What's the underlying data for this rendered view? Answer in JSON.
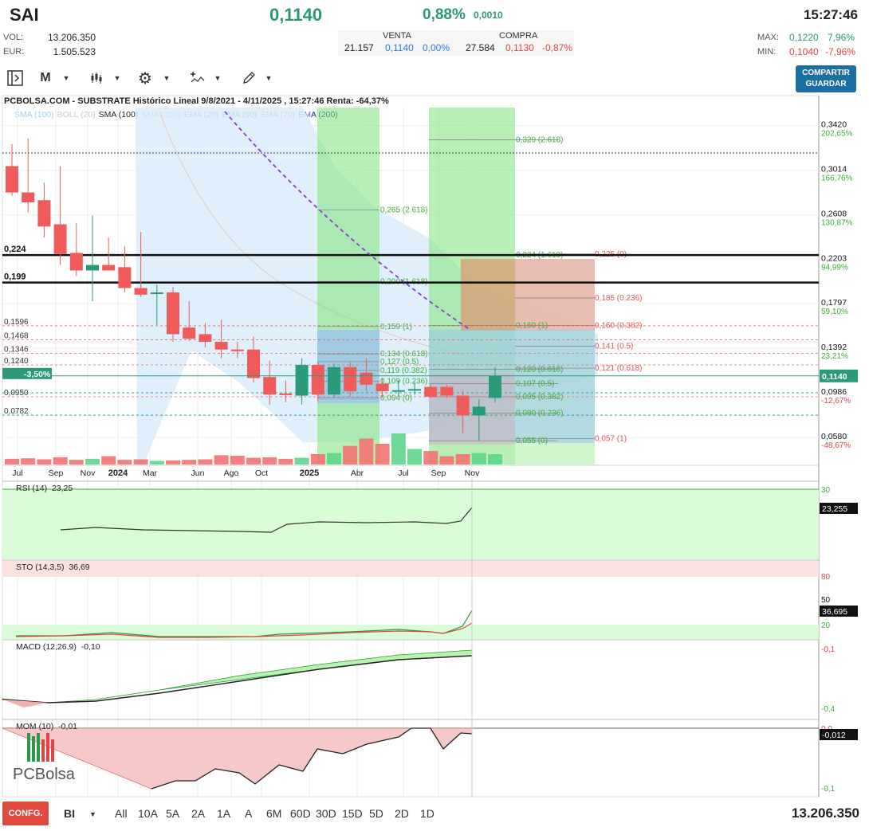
{
  "header": {
    "ticker": "SAI",
    "price": "0,1140",
    "change_pct": "0,88%",
    "change_abs": "0,0010",
    "time": "15:27:46",
    "vol_label": "VOL:",
    "vol_value": "13.206.350",
    "eur_label": "EUR:",
    "eur_value": "1.505.523",
    "venta_label": "VENTA",
    "compra_label": "COMPRA",
    "venta_qty": "21.157",
    "venta_price": "0,1140",
    "venta_pct": "0,00%",
    "compra_qty": "27.584",
    "compra_price": "0,1130",
    "compra_pct": "-0,87%",
    "max_label": "MAX:",
    "max_value": "0,1220",
    "max_pct": "7,96%",
    "min_label": "MIN:",
    "min_value": "0,1040",
    "min_pct": "-7,96%"
  },
  "toolbar": {
    "period": "M",
    "share_label": "COMPARTIR",
    "save_label": "GUARDAR"
  },
  "chart_title": "PCBOLSA.COM - SUBSTRATE Histórico Lineal 9/8/2021 - 4/11/2025 , 15:27:46 Renta: -64,37%",
  "legend": [
    {
      "text": "SMA (100)",
      "color": "#9fcfee"
    },
    {
      "text": "BOLL (20)",
      "color": "#cccccc"
    },
    {
      "text": "SMA (100)",
      "color": "#222222"
    },
    {
      "text": "SMA (200)",
      "color": "#999999"
    },
    {
      "text": "EMA (20)",
      "color": "#8a3fd1"
    },
    {
      "text": "EMA (50)",
      "color": "#1c8a2e"
    },
    {
      "text": "EMA (70)",
      "color": "#e04545"
    },
    {
      "text": "EMA (200)",
      "color": "#1f2f9a"
    }
  ],
  "chart_data": {
    "type": "candlestick",
    "x_tick_labels": [
      "Jul",
      "Sep",
      "Nov",
      "2024",
      "Mar",
      "Jun",
      "Ago",
      "Oct",
      "2025",
      "Abr",
      "Jul",
      "Sep",
      "Nov"
    ],
    "y_ticks": [
      {
        "value": 0.342,
        "label": "0,3420",
        "pct": "202,65%"
      },
      {
        "value": 0.3014,
        "label": "0,3014",
        "pct": "166,76%"
      },
      {
        "value": 0.2608,
        "label": "0,2608",
        "pct": "130,87%"
      },
      {
        "value": 0.2203,
        "label": "0,2203",
        "pct": "94,99%"
      },
      {
        "value": 0.1797,
        "label": "0,1797",
        "pct": "59,10%"
      },
      {
        "value": 0.1392,
        "label": "0,1392",
        "pct": "23,21%"
      },
      {
        "value": 0.0986,
        "label": "0,0986",
        "pct": "-12,67%"
      },
      {
        "value": 0.058,
        "label": "0,0580",
        "pct": "-48,67%"
      }
    ],
    "current_price_label": "0,1140",
    "horizontal_levels": [
      {
        "value": 0.224,
        "label": "0,224"
      },
      {
        "value": 0.199,
        "label": "0,199"
      }
    ],
    "left_level_labels": [
      {
        "value": 0.1596,
        "label": "0,1596"
      },
      {
        "value": 0.1468,
        "label": "0,1468"
      },
      {
        "value": 0.1346,
        "label": "0,1346"
      },
      {
        "value": 0.124,
        "label": "0,1240"
      },
      {
        "value": 0.095,
        "label": "0,0950"
      },
      {
        "value": 0.0782,
        "label": "0,0782"
      }
    ],
    "left_badge": "-3,50%",
    "fib_labels_1": [
      {
        "value": 0.265,
        "text": "0,265 (2.618)"
      },
      {
        "value": 0.2,
        "text": "0,200 (1.618)"
      },
      {
        "value": 0.159,
        "text": "0,159 (1)"
      },
      {
        "value": 0.134,
        "text": "0,134 (0.618)"
      },
      {
        "value": 0.127,
        "text": "0,127 (0.5)"
      },
      {
        "value": 0.119,
        "text": "0,119 (0.382)"
      },
      {
        "value": 0.109,
        "text": "0,109 (0.236)"
      },
      {
        "value": 0.094,
        "text": "0,094 (0)"
      }
    ],
    "fib_labels_2": [
      {
        "value": 0.329,
        "text": "0,329 (2.618)"
      },
      {
        "value": 0.224,
        "text": "0,224 (1.618)"
      },
      {
        "value": 0.16,
        "text": "0,160 (1)"
      },
      {
        "value": 0.12,
        "text": "0,120 (0.618)"
      },
      {
        "value": 0.107,
        "text": "0,107 (0.5)"
      },
      {
        "value": 0.095,
        "text": "0,095 (0.382)"
      },
      {
        "value": 0.08,
        "text": "0,080 (0.236)"
      },
      {
        "value": 0.055,
        "text": "0,055 (0)"
      }
    ],
    "fib_labels_3": [
      {
        "value": 0.225,
        "text": "0,225 (0)"
      },
      {
        "value": 0.185,
        "text": "0,185 (0.236)"
      },
      {
        "value": 0.16,
        "text": "0,160 (0.382)"
      },
      {
        "value": 0.141,
        "text": "0,141 (0.5)"
      },
      {
        "value": 0.121,
        "text": "0,121 (0.618)"
      },
      {
        "value": 0.057,
        "text": "0,057 (1)"
      }
    ],
    "candles": [
      {
        "o": 0.305,
        "h": 0.325,
        "l": 0.278,
        "c": 0.281
      },
      {
        "o": 0.281,
        "h": 0.33,
        "l": 0.263,
        "c": 0.272
      },
      {
        "o": 0.274,
        "h": 0.29,
        "l": 0.24,
        "c": 0.25
      },
      {
        "o": 0.252,
        "h": 0.305,
        "l": 0.215,
        "c": 0.225
      },
      {
        "o": 0.226,
        "h": 0.253,
        "l": 0.205,
        "c": 0.21
      },
      {
        "o": 0.21,
        "h": 0.26,
        "l": 0.182,
        "c": 0.215
      },
      {
        "o": 0.215,
        "h": 0.24,
        "l": 0.21,
        "c": 0.21
      },
      {
        "o": 0.213,
        "h": 0.232,
        "l": 0.19,
        "c": 0.194
      },
      {
        "o": 0.194,
        "h": 0.245,
        "l": 0.186,
        "c": 0.188
      },
      {
        "o": 0.19,
        "h": 0.197,
        "l": 0.16,
        "c": 0.19
      },
      {
        "o": 0.19,
        "h": 0.195,
        "l": 0.145,
        "c": 0.152
      },
      {
        "o": 0.158,
        "h": 0.182,
        "l": 0.146,
        "c": 0.148
      },
      {
        "o": 0.152,
        "h": 0.162,
        "l": 0.14,
        "c": 0.145
      },
      {
        "o": 0.145,
        "h": 0.165,
        "l": 0.13,
        "c": 0.138
      },
      {
        "o": 0.138,
        "h": 0.145,
        "l": 0.13,
        "c": 0.137
      },
      {
        "o": 0.138,
        "h": 0.15,
        "l": 0.108,
        "c": 0.112
      },
      {
        "o": 0.113,
        "h": 0.128,
        "l": 0.088,
        "c": 0.097
      },
      {
        "o": 0.098,
        "h": 0.11,
        "l": 0.09,
        "c": 0.097
      },
      {
        "o": 0.096,
        "h": 0.13,
        "l": 0.088,
        "c": 0.124
      },
      {
        "o": 0.124,
        "h": 0.127,
        "l": 0.091,
        "c": 0.097
      },
      {
        "o": 0.097,
        "h": 0.125,
        "l": 0.094,
        "c": 0.122
      },
      {
        "o": 0.122,
        "h": 0.126,
        "l": 0.095,
        "c": 0.1
      },
      {
        "o": 0.117,
        "h": 0.13,
        "l": 0.1,
        "c": 0.106
      },
      {
        "o": 0.107,
        "h": 0.112,
        "l": 0.094,
        "c": 0.1
      },
      {
        "o": 0.1,
        "h": 0.11,
        "l": 0.096,
        "c": 0.101
      },
      {
        "o": 0.101,
        "h": 0.108,
        "l": 0.097,
        "c": 0.102
      },
      {
        "o": 0.104,
        "h": 0.106,
        "l": 0.094,
        "c": 0.095
      },
      {
        "o": 0.104,
        "h": 0.106,
        "l": 0.094,
        "c": 0.096
      },
      {
        "o": 0.096,
        "h": 0.1,
        "l": 0.062,
        "c": 0.078
      },
      {
        "o": 0.078,
        "h": 0.093,
        "l": 0.055,
        "c": 0.086
      },
      {
        "o": 0.094,
        "h": 0.122,
        "l": 0.09,
        "c": 0.114
      }
    ],
    "volumes": [
      0.55,
      0.6,
      0.5,
      0.7,
      0.45,
      0.55,
      0.8,
      0.45,
      0.5,
      0.35,
      0.4,
      0.45,
      0.5,
      0.9,
      0.85,
      0.65,
      0.7,
      0.55,
      0.65,
      1.0,
      1.1,
      1.8,
      2.5,
      2.0,
      3.0,
      1.5,
      1.3,
      0.8,
      1.0,
      1.1,
      1.0
    ],
    "rsi": {
      "label": "RSI (14)",
      "value": "23,25",
      "last": "23,255",
      "levels": [
        "30"
      ]
    },
    "sto": {
      "label": "STO (14,3,5)",
      "value": "36,69",
      "last": "36,695",
      "levels": [
        "80",
        "50",
        "20"
      ]
    },
    "macd": {
      "label": "MACD (12,26,9)",
      "value": "-0,10",
      "levels": [
        "-0,1",
        "-0,4"
      ]
    },
    "mom": {
      "label": "MOM (10)",
      "value": "-0,01",
      "last": "-0,012",
      "levels": [
        "0,0",
        "-0,1"
      ]
    }
  },
  "watermark": "PCBolsa",
  "bottom": {
    "confg_label": "CONFG.",
    "bl_label": "BI",
    "ranges": [
      "All",
      "10A",
      "5A",
      "2A",
      "1A",
      "A",
      "6M",
      "60D",
      "30D",
      "15D",
      "5D",
      "2D",
      "1D"
    ],
    "volume_total": "13.206.350"
  }
}
